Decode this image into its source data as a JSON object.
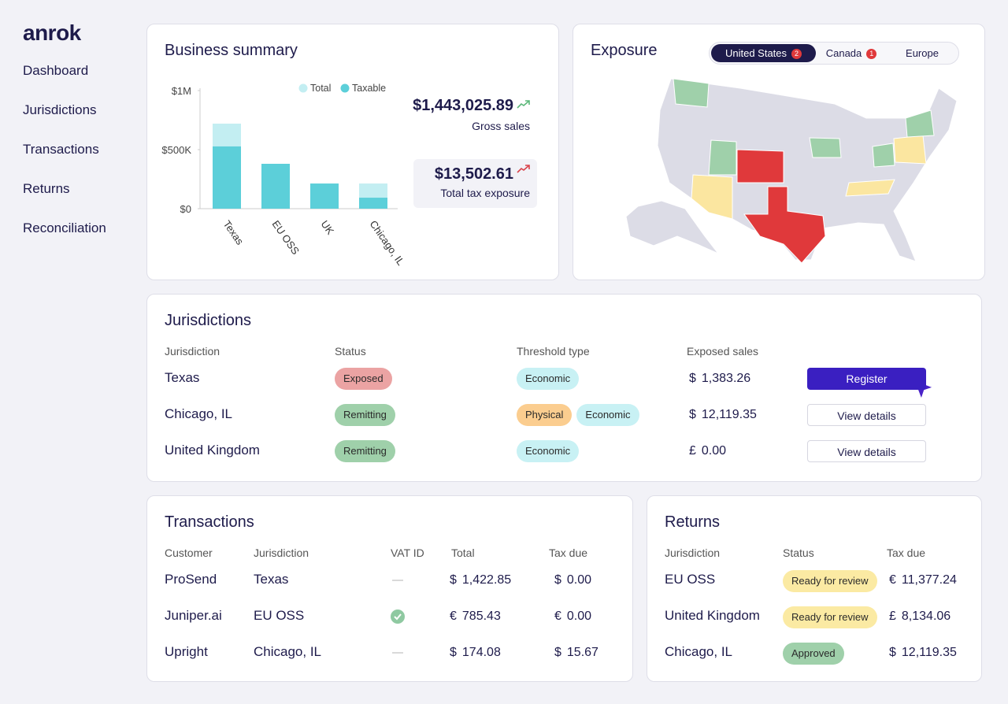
{
  "brand": "anrok",
  "nav": [
    "Dashboard",
    "Jurisdictions",
    "Transactions",
    "Returns",
    "Reconciliation"
  ],
  "summary": {
    "title": "Business summary",
    "gross_sales": "$1,443,025.89",
    "gross_sales_label": "Gross sales",
    "tax_exposure": "$13,502.61",
    "tax_exposure_label": "Total tax exposure"
  },
  "chart_data": {
    "type": "bar",
    "categories": [
      "Texas",
      "EU OSS",
      "UK",
      "Chicago, IL"
    ],
    "series": [
      {
        "name": "Total",
        "color": "#c3eef2",
        "values": [
          720000,
          380000,
          213000,
          213000
        ]
      },
      {
        "name": "Taxable",
        "color": "#5ccfd9",
        "values": [
          527000,
          380000,
          213000,
          93000
        ]
      }
    ],
    "ylim": [
      0,
      1000000
    ],
    "yticks": [
      {
        "value": 0,
        "label": "$0"
      },
      {
        "value": 500000,
        "label": "$500K"
      },
      {
        "value": 1000000,
        "label": "$1M"
      }
    ]
  },
  "exposure": {
    "title": "Exposure",
    "tabs": [
      {
        "label": "United States",
        "count": 2
      },
      {
        "label": "Canada",
        "count": 1
      },
      {
        "label": "Europe"
      }
    ]
  },
  "jurisdictions": {
    "title": "Jurisdictions",
    "columns": [
      "Jurisdiction",
      "Status",
      "Threshold type",
      "Exposed sales"
    ],
    "rows": [
      {
        "name": "Texas",
        "status": "Exposed",
        "status_color": "#eba3a3",
        "thresholds": [
          {
            "label": "Economic",
            "color": "#c8f1f4"
          }
        ],
        "currency": "$",
        "amount": "1,383.26",
        "action": "Register",
        "primary": true
      },
      {
        "name": "Chicago, IL",
        "status": "Remitting",
        "status_color": "#9fd0aa",
        "thresholds": [
          {
            "label": "Physical",
            "color": "#fbcd8f"
          },
          {
            "label": "Economic",
            "color": "#c8f1f4"
          }
        ],
        "currency": "$",
        "amount": "12,119.35",
        "action": "View details",
        "primary": false
      },
      {
        "name": "United Kingdom",
        "status": "Remitting",
        "status_color": "#9fd0aa",
        "thresholds": [
          {
            "label": "Economic",
            "color": "#c8f1f4"
          }
        ],
        "currency": "£",
        "amount": "0.00",
        "action": "View details",
        "primary": false
      }
    ]
  },
  "transactions": {
    "title": "Transactions",
    "columns": [
      "Customer",
      "Jurisdiction",
      "VAT ID",
      "Total",
      "Tax due"
    ],
    "rows": [
      {
        "customer": "ProSend",
        "jurisdiction": "Texas",
        "vat_verified": false,
        "total_currency": "$",
        "total": "1,422.85",
        "tax_currency": "$",
        "tax": "0.00"
      },
      {
        "customer": "Juniper.ai",
        "jurisdiction": "EU OSS",
        "vat_verified": true,
        "total_currency": "€",
        "total": "785.43",
        "tax_currency": "€",
        "tax": "0.00"
      },
      {
        "customer": "Upright",
        "jurisdiction": "Chicago, IL",
        "vat_verified": false,
        "total_currency": "$",
        "total": "174.08",
        "tax_currency": "$",
        "tax": "15.67"
      }
    ]
  },
  "returns": {
    "title": "Returns",
    "columns": [
      "Jurisdiction",
      "Status",
      "Tax due"
    ],
    "rows": [
      {
        "jurisdiction": "EU OSS",
        "status": "Ready for review",
        "status_color": "#fbeaa3",
        "currency": "€",
        "amount": "11,377.24"
      },
      {
        "jurisdiction": "United Kingdom",
        "status": "Ready for review",
        "status_color": "#fbeaa3",
        "currency": "£",
        "amount": "8,134.06"
      },
      {
        "jurisdiction": "Chicago, IL",
        "status": "Approved",
        "status_color": "#9fd0aa",
        "currency": "$",
        "amount": "12,119.35"
      }
    ]
  }
}
